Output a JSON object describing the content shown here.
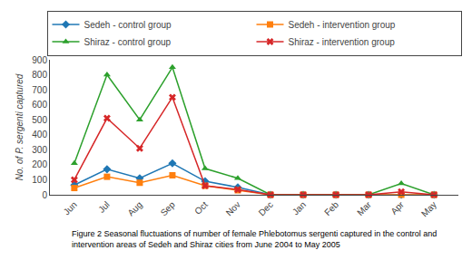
{
  "chart_data": {
    "type": "line",
    "categories": [
      "Jun",
      "Jul",
      "Aug",
      "Sep",
      "Oct",
      "Nov",
      "Dec",
      "Jan",
      "Feb",
      "Mar",
      "Apr",
      "May"
    ],
    "series": [
      {
        "name": "Sedeh - control group",
        "values": [
          65,
          170,
          110,
          210,
          90,
          50,
          0,
          0,
          0,
          0,
          0,
          0
        ],
        "marker": "diamond"
      },
      {
        "name": "Sedeh - intervention group",
        "values": [
          45,
          120,
          80,
          130,
          60,
          30,
          0,
          0,
          0,
          0,
          0,
          0
        ],
        "marker": "square"
      },
      {
        "name": "Shiraz - control group",
        "values": [
          210,
          800,
          500,
          850,
          175,
          110,
          0,
          0,
          0,
          0,
          75,
          0
        ],
        "marker": "triangle-up"
      },
      {
        "name": "Shiraz - intervention group",
        "values": [
          100,
          510,
          310,
          650,
          60,
          35,
          0,
          0,
          0,
          0,
          20,
          0
        ],
        "marker": "x"
      }
    ],
    "ylabel": "No. of P. sergenti captured",
    "ylim": [
      0,
      900
    ],
    "yticks": [
      0,
      100,
      200,
      300,
      400,
      500,
      600,
      700,
      800,
      900
    ],
    "grid": false,
    "legend": "top",
    "annotations": [
      "Figure 2 Seasonal fluctuations of number of female Phlebotomus sergenti captured in the control and\nintervention areas of Sedeh and Shiraz cities from June 2004 to May 2005"
    ]
  }
}
